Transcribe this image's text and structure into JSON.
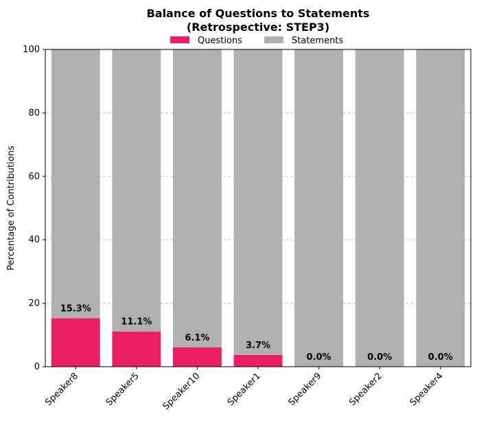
{
  "chart_data": {
    "type": "bar",
    "stacked": true,
    "title": "Balance of Questions to Statements",
    "subtitle": "(Retrospective: STEP3)",
    "xlabel": "",
    "ylabel": "Percentage of Contributions",
    "ylim": [
      0,
      100
    ],
    "yticks": [
      0,
      20,
      40,
      60,
      80,
      100
    ],
    "grid": "y-dashed",
    "legend_position": "top-center",
    "categories": [
      "Speaker8",
      "Speaker5",
      "Speaker10",
      "Speaker1",
      "Speaker9",
      "Speaker2",
      "Speaker4"
    ],
    "series": [
      {
        "name": "Questions",
        "color": "#e91e63",
        "values": [
          15.3,
          11.1,
          6.1,
          3.7,
          0.0,
          0.0,
          0.0
        ]
      },
      {
        "name": "Statements",
        "color": "#b0b0b0",
        "values": [
          84.7,
          88.9,
          93.9,
          96.3,
          100.0,
          100.0,
          100.0
        ]
      }
    ],
    "data_labels": [
      "15.3%",
      "11.1%",
      "6.1%",
      "3.7%",
      "0.0%",
      "0.0%",
      "0.0%"
    ]
  }
}
